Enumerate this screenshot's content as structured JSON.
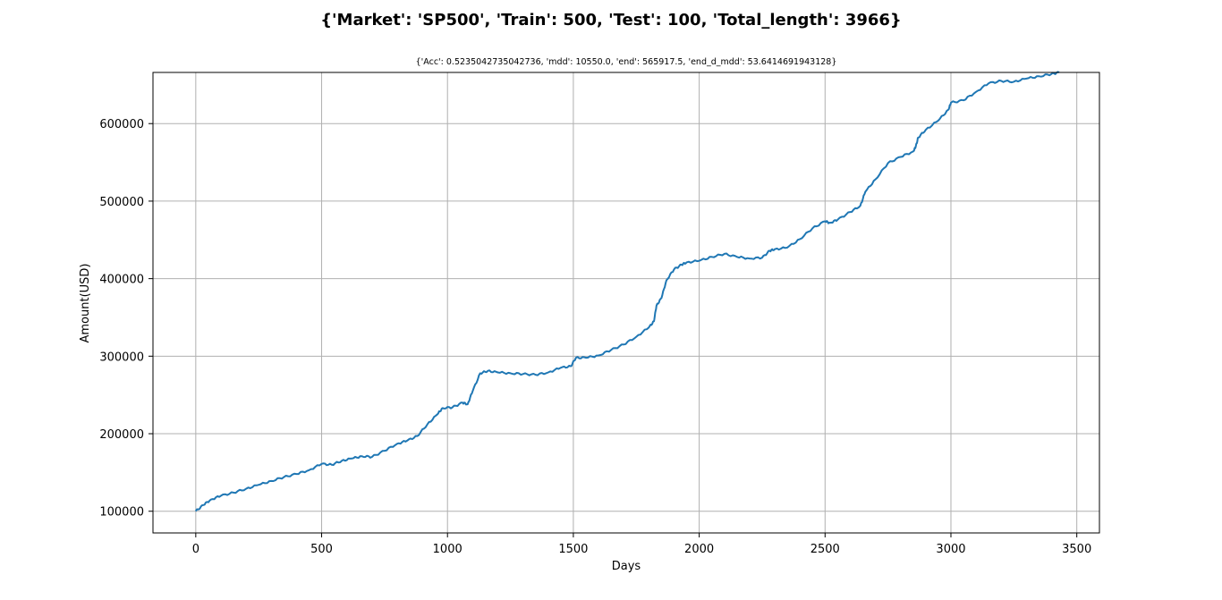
{
  "figure": {
    "suptitle": "{'Market': 'SP500', 'Train': 500, 'Test': 100, 'Total_length': 3966}"
  },
  "chart_data": {
    "type": "line",
    "title": "{'Acc': 0.5235042735042736, 'mdd': 10550.0, 'end': 565917.5, 'end_d_mdd': 53.6414691943128}",
    "xlabel": "Days",
    "ylabel": "Amount(USD)",
    "xlim": [
      -170,
      3590
    ],
    "ylim": [
      72000,
      666000
    ],
    "xticks": [
      0,
      500,
      1000,
      1500,
      2000,
      2500,
      3000,
      3500
    ],
    "xtick_labels": [
      "0",
      "500",
      "1000",
      "1500",
      "2000",
      "2500",
      "3000",
      "3500"
    ],
    "yticks": [
      100000,
      200000,
      300000,
      400000,
      500000,
      600000
    ],
    "ytick_labels": [
      "100000",
      "200000",
      "300000",
      "400000",
      "500000",
      "600000"
    ],
    "grid": true,
    "line_color": "#1f77b4",
    "series": [
      {
        "x": [
          0,
          30,
          60,
          100,
          150,
          200,
          250,
          300,
          350,
          400,
          450,
          500,
          540,
          580,
          620,
          660,
          700,
          750,
          800,
          840,
          880,
          920,
          960,
          980,
          1020,
          1060,
          1080,
          1100,
          1130,
          1160,
          1200,
          1250,
          1300,
          1350,
          1400,
          1450,
          1490,
          1510,
          1550,
          1600,
          1650,
          1700,
          1750,
          1800,
          1820,
          1830,
          1850,
          1870,
          1900,
          1930,
          1950,
          2000,
          2050,
          2100,
          2150,
          2200,
          2250,
          2280,
          2300,
          2350,
          2400,
          2450,
          2500,
          2520,
          2550,
          2600,
          2640,
          2660,
          2700,
          2750,
          2800,
          2850,
          2860,
          2870,
          2900,
          2950,
          2990,
          3000,
          3050,
          3100,
          3150,
          3200,
          3250,
          3300,
          3350,
          3400,
          3430
        ],
        "y": [
          100000,
          108000,
          115000,
          120000,
          124000,
          129000,
          134000,
          139000,
          144000,
          148000,
          153000,
          161000,
          160000,
          165000,
          168000,
          171000,
          170000,
          178000,
          187000,
          191000,
          197000,
          212000,
          225000,
          233000,
          234000,
          240000,
          238000,
          255000,
          278000,
          281000,
          279000,
          278000,
          277000,
          276000,
          279000,
          285000,
          287000,
          298000,
          298000,
          301000,
          308000,
          315000,
          325000,
          337000,
          345000,
          365000,
          375000,
          398000,
          412000,
          418000,
          421000,
          423000,
          428000,
          432000,
          428000,
          426000,
          427000,
          436000,
          438000,
          440000,
          451000,
          465000,
          474000,
          472000,
          476000,
          486000,
          494000,
          512000,
          528000,
          549000,
          557000,
          564000,
          570000,
          582000,
          592000,
          604000,
          618000,
          627000,
          630000,
          641000,
          652000,
          655000,
          654000,
          658000,
          661000,
          664000,
          666000
        ]
      }
    ]
  }
}
